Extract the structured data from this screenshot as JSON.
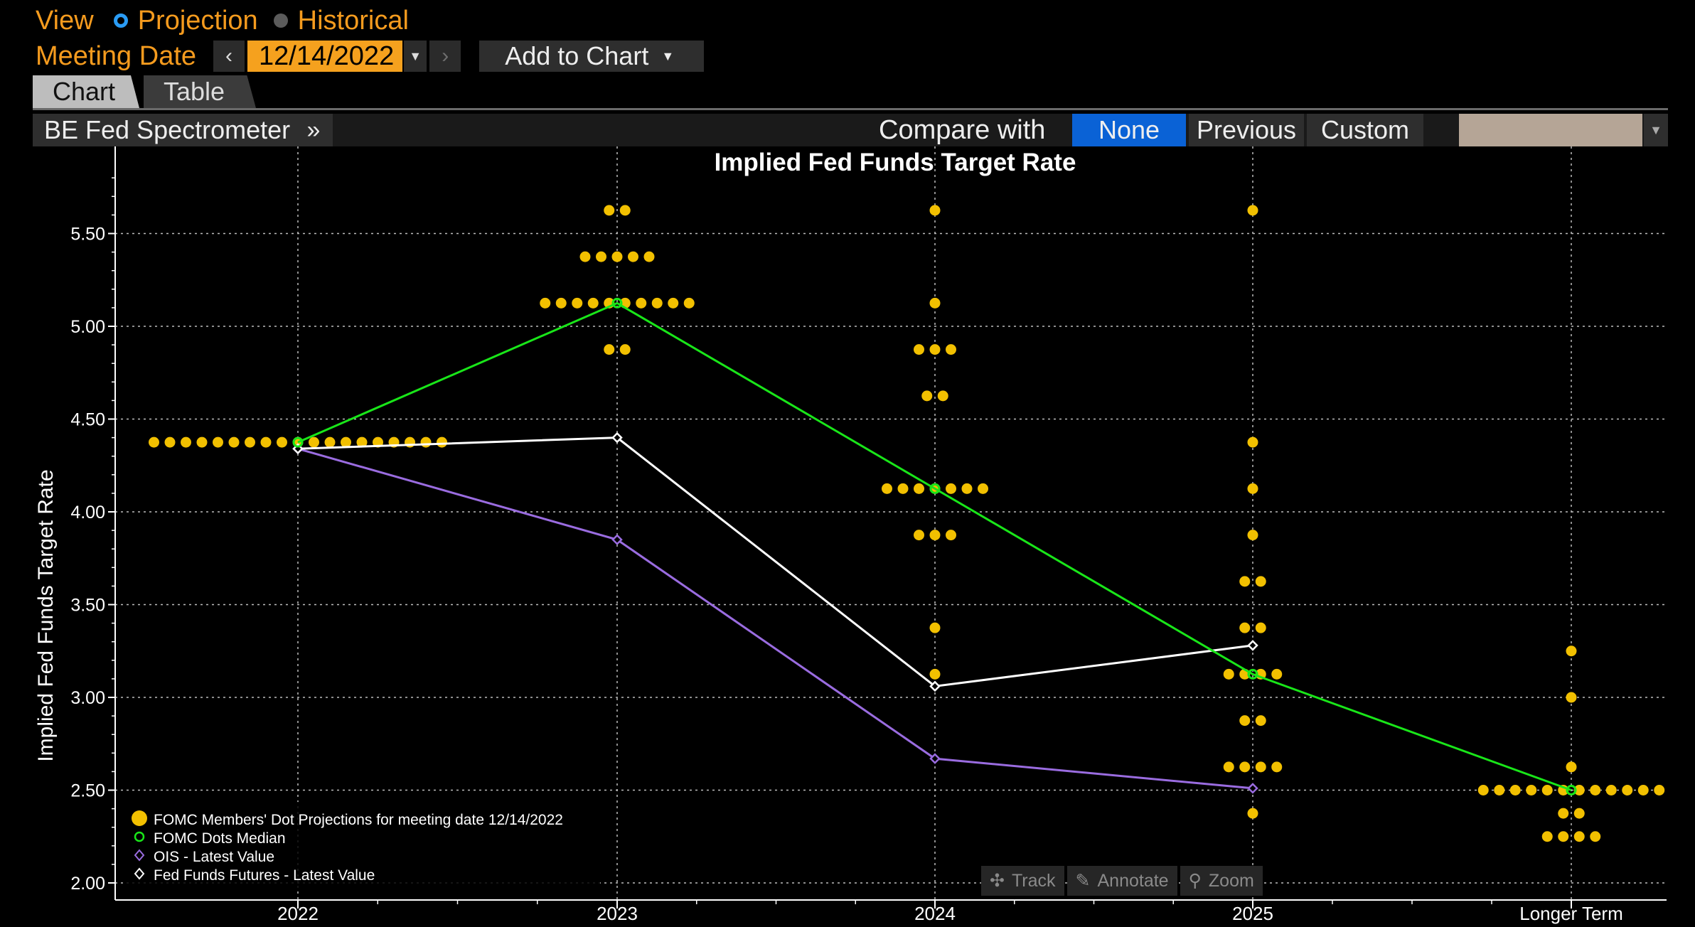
{
  "header": {
    "view_label": "View",
    "view_options": [
      {
        "label": "Projection",
        "selected": true
      },
      {
        "label": "Historical",
        "selected": false
      }
    ],
    "meeting_date_label": "Meeting Date",
    "meeting_date_value": "12/14/2022",
    "add_to_chart_label": "Add to Chart"
  },
  "tabs": [
    {
      "label": "Chart",
      "active": true
    },
    {
      "label": "Table",
      "active": false
    }
  ],
  "toolbar": {
    "source_label": "BE Fed Spectrometer",
    "more_icon": "double-chevron-right-icon",
    "compare_label": "Compare with",
    "compare_options": [
      {
        "label": "None",
        "selected": true
      },
      {
        "label": "Previous",
        "selected": false
      },
      {
        "label": "Custom",
        "selected": false
      }
    ],
    "custom_color": "#b5a596"
  },
  "zoom_controls": [
    {
      "label": "Track",
      "icon": "crosshair-icon"
    },
    {
      "label": "Annotate",
      "icon": "pencil-icon"
    },
    {
      "label": "Zoom",
      "icon": "magnifier-icon"
    }
  ],
  "colors": {
    "accent_orange": "#f59b1e",
    "dots": "#f2c000",
    "median": "#19e619",
    "ois": "#9a6ce0",
    "futures": "#ffffff",
    "compare_selected": "#0a62d6"
  },
  "chart_data": {
    "type": "scatter",
    "title": "Implied Fed Funds Target Rate",
    "ylabel": "Implied Fed Funds Target Rate",
    "xlabel": "",
    "categories": [
      "2022",
      "2023",
      "2024",
      "2025",
      "Longer Term"
    ],
    "ylim": [
      1.95,
      5.92
    ],
    "yticks": [
      "2.00",
      "2.50",
      "3.00",
      "3.50",
      "4.00",
      "4.50",
      "5.00",
      "5.50"
    ],
    "grid": true,
    "legend_position": "bottom-left",
    "dots": {
      "name": "FOMC Members' Dot Projections for meeting date 12/14/2022",
      "points": [
        {
          "x": "2022",
          "y": 4.375,
          "count": 19
        },
        {
          "x": "2023",
          "y": 5.625,
          "count": 2
        },
        {
          "x": "2023",
          "y": 5.375,
          "count": 5
        },
        {
          "x": "2023",
          "y": 5.125,
          "count": 10
        },
        {
          "x": "2023",
          "y": 4.875,
          "count": 2
        },
        {
          "x": "2024",
          "y": 5.625,
          "count": 1
        },
        {
          "x": "2024",
          "y": 5.125,
          "count": 1
        },
        {
          "x": "2024",
          "y": 4.875,
          "count": 3
        },
        {
          "x": "2024",
          "y": 4.625,
          "count": 2
        },
        {
          "x": "2024",
          "y": 4.125,
          "count": 7
        },
        {
          "x": "2024",
          "y": 3.875,
          "count": 3
        },
        {
          "x": "2024",
          "y": 3.375,
          "count": 1
        },
        {
          "x": "2024",
          "y": 3.125,
          "count": 1
        },
        {
          "x": "2025",
          "y": 5.625,
          "count": 1
        },
        {
          "x": "2025",
          "y": 4.375,
          "count": 1
        },
        {
          "x": "2025",
          "y": 4.125,
          "count": 1
        },
        {
          "x": "2025",
          "y": 3.875,
          "count": 1
        },
        {
          "x": "2025",
          "y": 3.625,
          "count": 2
        },
        {
          "x": "2025",
          "y": 3.375,
          "count": 2
        },
        {
          "x": "2025",
          "y": 3.125,
          "count": 4
        },
        {
          "x": "2025",
          "y": 2.875,
          "count": 2
        },
        {
          "x": "2025",
          "y": 2.625,
          "count": 4
        },
        {
          "x": "2025",
          "y": 2.375,
          "count": 1
        },
        {
          "x": "Longer Term",
          "y": 3.25,
          "count": 1
        },
        {
          "x": "Longer Term",
          "y": 3.0,
          "count": 1
        },
        {
          "x": "Longer Term",
          "y": 2.625,
          "count": 1
        },
        {
          "x": "Longer Term",
          "y": 2.5,
          "count": 12
        },
        {
          "x": "Longer Term",
          "y": 2.375,
          "count": 2
        },
        {
          "x": "Longer Term",
          "y": 2.25,
          "count": 4
        }
      ]
    },
    "series": [
      {
        "name": "FOMC Dots Median",
        "marker": "circle",
        "values": [
          4.375,
          5.125,
          4.125,
          3.125,
          2.5
        ]
      },
      {
        "name": "OIS - Latest Value",
        "marker": "diamond",
        "values": [
          4.34,
          3.85,
          2.67,
          2.51
        ]
      },
      {
        "name": "Fed Funds Futures - Latest Value",
        "marker": "diamond",
        "values": [
          4.34,
          4.4,
          3.06,
          3.28
        ]
      }
    ]
  }
}
